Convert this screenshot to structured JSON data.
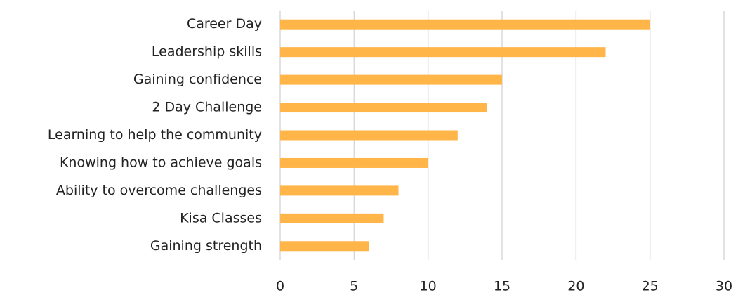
{
  "chart_data": {
    "type": "bar",
    "orientation": "horizontal",
    "categories": [
      "Career Day",
      "Leadership skills",
      "Gaining confidence",
      "2 Day Challenge",
      "Learning to help the community",
      "Knowing how to achieve goals",
      "Ability to overcome challenges",
      "Kisa Classes",
      "Gaining strength"
    ],
    "values": [
      25,
      22,
      15,
      14,
      12,
      10,
      8,
      7,
      6
    ],
    "color": "#ffb547",
    "xlim": [
      0,
      30
    ],
    "xticks": [
      0,
      5,
      10,
      15,
      20,
      25,
      30
    ],
    "grid": true
  }
}
